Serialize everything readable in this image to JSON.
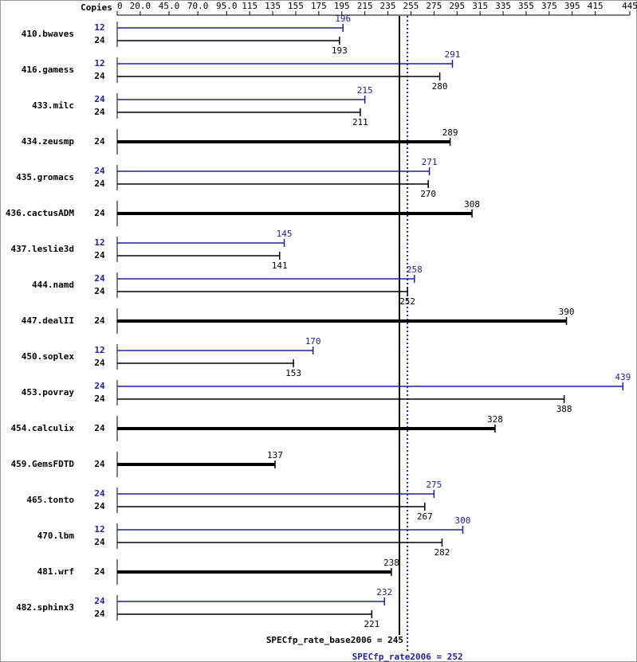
{
  "chart_data": {
    "type": "spec-bars",
    "copies_label": "Copies",
    "xlim": [
      0,
      445
    ],
    "xticks": [
      0,
      {
        "value": 20,
        "label": "20.0"
      },
      {
        "value": 45,
        "label": "45.0"
      },
      {
        "value": 70,
        "label": "70.0"
      },
      {
        "value": 95,
        "label": "95.0"
      },
      115,
      135,
      155,
      175,
      195,
      215,
      235,
      255,
      275,
      295,
      315,
      335,
      355,
      375,
      395,
      415,
      445
    ],
    "categories": [
      "410.bwaves",
      "416.gamess",
      "433.milc",
      "434.zeusmp",
      "435.gromacs",
      "436.cactusADM",
      "437.leslie3d",
      "444.namd",
      "447.dealII",
      "450.soplex",
      "453.povray",
      "454.calculix",
      "459.GemsFDTD",
      "465.tonto",
      "470.lbm",
      "481.wrf",
      "482.sphinx3"
    ],
    "peak_color": "#1f1f9a",
    "base_color": "#000000",
    "peak_copies": [
      12,
      12,
      24,
      null,
      24,
      null,
      12,
      24,
      null,
      12,
      24,
      null,
      null,
      24,
      12,
      null,
      24
    ],
    "peak_values": [
      196,
      291,
      215,
      null,
      271,
      null,
      145,
      258,
      null,
      170,
      439,
      null,
      null,
      275,
      300,
      null,
      232
    ],
    "base_copies": [
      24,
      24,
      24,
      24,
      24,
      24,
      24,
      24,
      24,
      24,
      24,
      24,
      24,
      24,
      24,
      24,
      24
    ],
    "base_values": [
      193,
      280,
      211,
      289,
      270,
      308,
      141,
      252,
      390,
      153,
      388,
      328,
      137,
      267,
      282,
      238,
      221
    ],
    "reference_lines": [
      {
        "label": "SPECfp_rate_base2006 = 245",
        "value": 245,
        "color": "#000000",
        "dashed": false
      },
      {
        "label": "SPECfp_rate2006 = 252",
        "value": 252,
        "color": "#1f1f9a",
        "dashed": true
      }
    ]
  }
}
